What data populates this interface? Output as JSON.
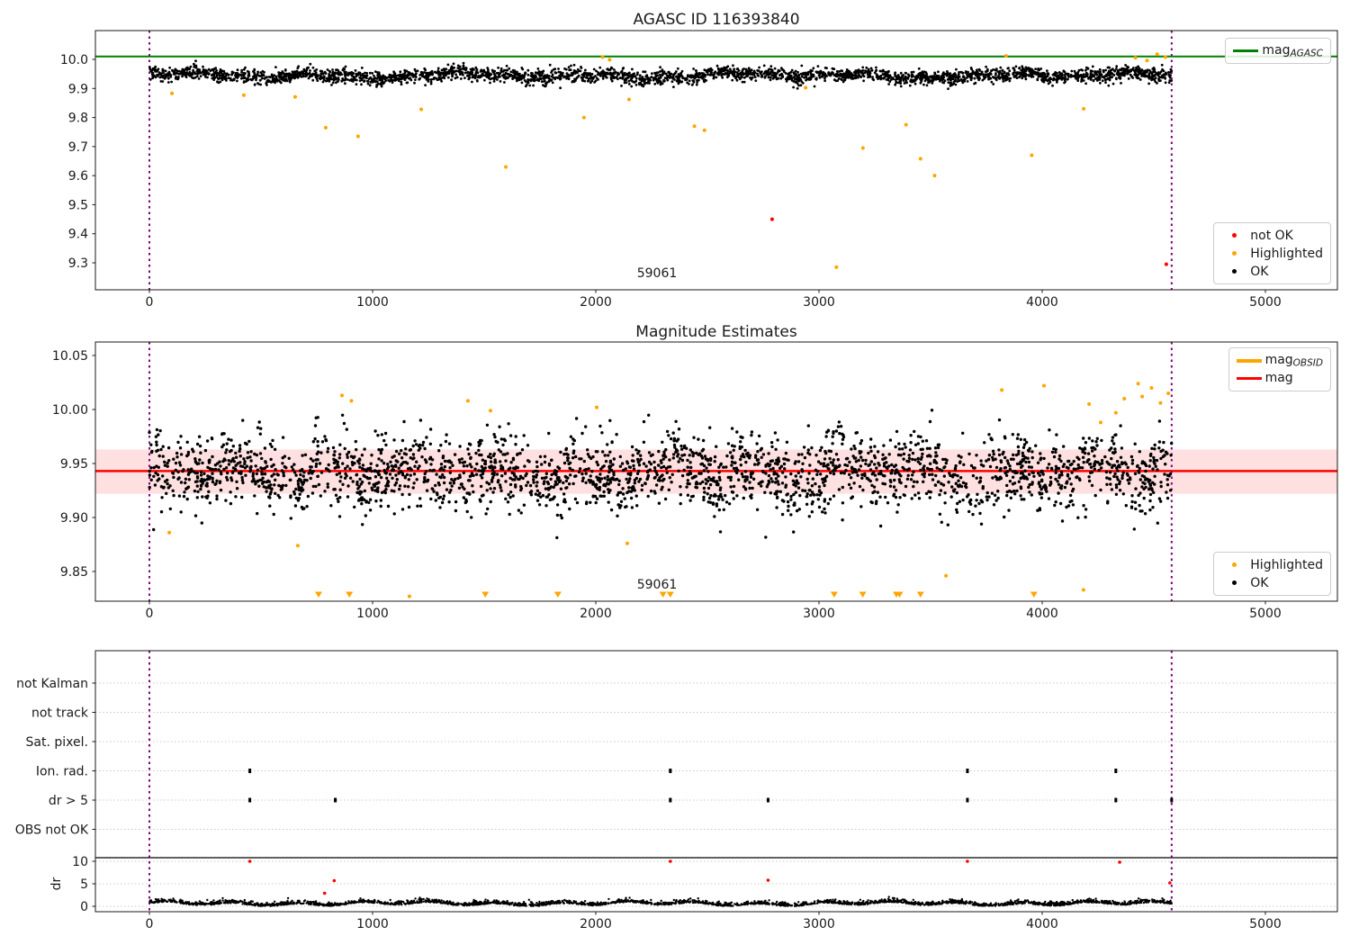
{
  "figure": {
    "background": "#ffffff"
  },
  "colors": {
    "ok": "#000000",
    "highlighted": "#ffa500",
    "not_ok": "#ff0000",
    "mag_agasc": "#008000",
    "mag": "#ff0000",
    "mag_obsid": "#ffa500",
    "band_fill": "rgba(255,0,0,0.12)",
    "vline": "#800080",
    "grid": "#c9c9c9",
    "spine": "#1a1a1a"
  },
  "chart_data": [
    {
      "type": "scatter",
      "title": "AGASC ID 116393840",
      "xlim": [
        -246,
        5318
      ],
      "ylim": [
        9.207,
        10.099
      ],
      "xticks": [
        0,
        1000,
        2000,
        3000,
        4000,
        5000
      ],
      "yticks": {
        "values": [
          10.0,
          9.9,
          9.8,
          9.7,
          9.6,
          9.5,
          9.4,
          9.3
        ],
        "labels": [
          "10.0",
          "9.9",
          "9.8",
          "9.7",
          "9.6",
          "9.5",
          "9.4",
          "9.3"
        ]
      },
      "mag_agasc_line": 10.01,
      "obs_window": [
        0,
        4580
      ],
      "annotation": {
        "text": "59061",
        "x": 2274,
        "y": 9.26
      },
      "legend_line": {
        "main": "mag",
        "sub": "AGASC"
      },
      "legend_markers": [
        {
          "label": "not OK",
          "color": "not_ok"
        },
        {
          "label": "Highlighted",
          "color": "highlighted"
        },
        {
          "label": "OK",
          "color": "ok"
        }
      ],
      "ok_band": {
        "n": 3200,
        "x_min": 0,
        "x_max": 4580,
        "y_center": 9.944,
        "y_sigma": 0.012,
        "y_min": 9.885,
        "y_max": 9.997
      },
      "highlighted_points": [
        [
          101,
          9.883
        ],
        [
          423,
          9.877
        ],
        [
          653,
          9.871
        ],
        [
          790,
          9.765
        ],
        [
          935,
          9.735
        ],
        [
          1218,
          9.828
        ],
        [
          1597,
          9.63
        ],
        [
          1947,
          9.8
        ],
        [
          2030,
          10.008
        ],
        [
          2062,
          9.999
        ],
        [
          2149,
          9.862
        ],
        [
          2442,
          9.77
        ],
        [
          2487,
          9.756
        ],
        [
          2940,
          9.903
        ],
        [
          3078,
          9.285
        ],
        [
          3197,
          9.695
        ],
        [
          3390,
          9.775
        ],
        [
          3455,
          9.658
        ],
        [
          3518,
          9.6
        ],
        [
          3838,
          10.012
        ],
        [
          3953,
          9.67
        ],
        [
          4186,
          9.83
        ],
        [
          4418,
          10.006
        ],
        [
          4470,
          9.996
        ],
        [
          4515,
          10.018
        ],
        [
          4552,
          10.008
        ]
      ],
      "not_ok_points": [
        [
          2790,
          9.45
        ],
        [
          4556,
          9.295
        ]
      ]
    },
    {
      "type": "scatter",
      "title": "Magnitude Estimates",
      "xlim": [
        -246,
        5318
      ],
      "ylim": [
        9.822,
        10.063
      ],
      "xticks": [
        0,
        1000,
        2000,
        3000,
        4000,
        5000
      ],
      "yticks": {
        "values": [
          10.05,
          10.0,
          9.95,
          9.9,
          9.85
        ],
        "labels": [
          "10.05",
          "10.00",
          "9.95",
          "9.90",
          "9.85"
        ]
      },
      "mag_line": 9.943,
      "mag_band": [
        9.922,
        9.963
      ],
      "obs_window": [
        0,
        4580
      ],
      "annotation": {
        "text": "59061",
        "x": 2274,
        "y": 9.838
      },
      "legend_lines": [
        {
          "main": "mag",
          "sub": "OBSID",
          "color": "mag_obsid"
        },
        {
          "main": "mag",
          "sub": "",
          "color": "mag"
        }
      ],
      "legend_markers": [
        {
          "label": "Highlighted",
          "color": "highlighted"
        },
        {
          "label": "OK",
          "color": "ok"
        }
      ],
      "ok_band": {
        "n": 2600,
        "x_min": 0,
        "x_max": 4580,
        "y_center": 9.941,
        "y_sigma": 0.017,
        "y_min": 9.881,
        "y_max": 10.001
      },
      "highlighted_points": [
        [
          89,
          9.886
        ],
        [
          665,
          9.874
        ],
        [
          863,
          10.013
        ],
        [
          905,
          10.008
        ],
        [
          1165,
          9.827
        ],
        [
          1427,
          10.008
        ],
        [
          1528,
          9.999
        ],
        [
          2004,
          10.002
        ],
        [
          2141,
          9.876
        ],
        [
          3569,
          9.846
        ],
        [
          3819,
          10.018
        ],
        [
          4008,
          10.022
        ],
        [
          4185,
          9.833
        ],
        [
          4210,
          10.005
        ],
        [
          4262,
          9.988
        ],
        [
          4330,
          9.997
        ],
        [
          4368,
          10.01
        ],
        [
          4430,
          10.024
        ],
        [
          4448,
          10.012
        ],
        [
          4490,
          10.02
        ],
        [
          4530,
          10.006
        ],
        [
          4565,
          10.015
        ]
      ],
      "clipped_low_x": [
        758,
        896,
        1505,
        1830,
        2301,
        2334,
        3068,
        3196,
        3347,
        3361,
        3455,
        3963
      ]
    },
    {
      "type": "scatter",
      "title": "",
      "categories": [
        "not Kalman",
        "not track",
        "Sat. pixel.",
        "Ion. rad.",
        "dr > 5",
        "OBS not OK"
      ],
      "xticks": [
        0,
        1000,
        2000,
        3000,
        4000,
        5000
      ],
      "dr_axis": {
        "label": "dr",
        "ticks": [
          10,
          5,
          0
        ]
      },
      "obs_window": [
        0,
        4580
      ],
      "flags": {
        "ion_rad_x": [
          450,
          2334,
          3665,
          4330
        ],
        "dr_gt5_x": [
          450,
          833,
          2334,
          2772,
          3665,
          4330,
          4580
        ]
      },
      "dr_not_ok_points": [
        [
          450,
          10
        ],
        [
          785,
          2.9
        ],
        [
          828,
          5.7
        ],
        [
          2334,
          10
        ],
        [
          2772,
          5.8
        ],
        [
          3665,
          10
        ],
        [
          4347,
          9.8
        ],
        [
          4572,
          5.2
        ]
      ],
      "dr_ok_band": {
        "n": 2600,
        "x_min": 0,
        "x_max": 4580,
        "center": 0.6,
        "sigma": 0.35,
        "max": 3.0
      }
    }
  ]
}
